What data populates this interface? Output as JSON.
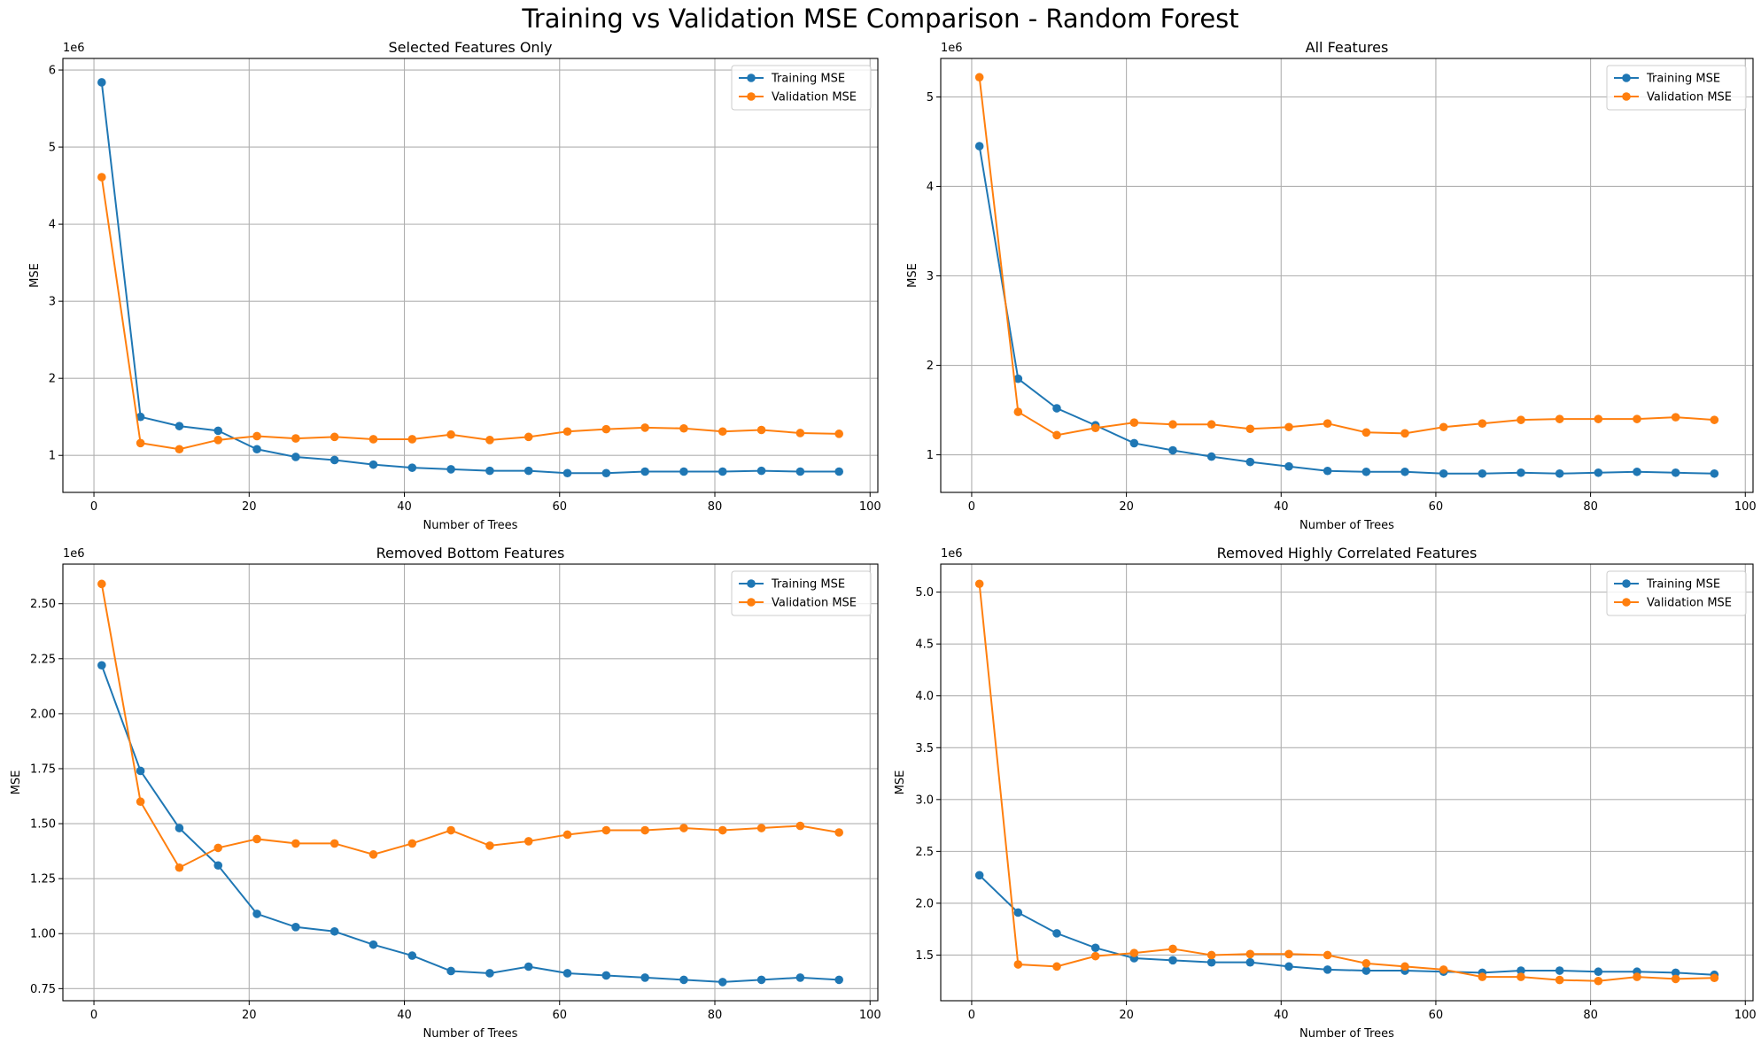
{
  "figure": {
    "title": "Training vs Validation MSE Comparison - Random Forest"
  },
  "colors": {
    "training": "#1f77b4",
    "validation": "#ff7f0e",
    "grid": "#b0b0b0"
  },
  "chart_data": [
    {
      "type": "line",
      "title": "Selected Features Only",
      "xlabel": "Number of Trees",
      "ylabel": "MSE",
      "offset_label": "1e6",
      "grid": true,
      "legend": "top-right",
      "xlim": [
        -4,
        101
      ],
      "ylim": [
        0.52,
        6.15
      ],
      "xticks": [
        0,
        20,
        40,
        60,
        80,
        100
      ],
      "xticklabels": [
        "0",
        "20",
        "40",
        "60",
        "80",
        "100"
      ],
      "yticks": [
        1,
        2,
        3,
        4,
        5,
        6
      ],
      "yticklabels": [
        "1",
        "2",
        "3",
        "4",
        "5",
        "6"
      ],
      "x": [
        1,
        6,
        11,
        16,
        21,
        26,
        31,
        36,
        41,
        46,
        51,
        56,
        61,
        66,
        71,
        76,
        81,
        86,
        91,
        96
      ],
      "series": [
        {
          "name": "Training MSE",
          "color": "#1f77b4",
          "values": [
            5.84,
            1.5,
            1.38,
            1.32,
            1.08,
            0.98,
            0.94,
            0.88,
            0.84,
            0.82,
            0.8,
            0.8,
            0.77,
            0.77,
            0.79,
            0.79,
            0.79,
            0.8,
            0.79,
            0.79
          ]
        },
        {
          "name": "Validation MSE",
          "color": "#ff7f0e",
          "values": [
            4.61,
            1.16,
            1.08,
            1.2,
            1.25,
            1.22,
            1.24,
            1.21,
            1.21,
            1.27,
            1.2,
            1.24,
            1.31,
            1.34,
            1.36,
            1.35,
            1.31,
            1.33,
            1.29,
            1.28
          ]
        }
      ]
    },
    {
      "type": "line",
      "title": "All Features",
      "xlabel": "Number of Trees",
      "ylabel": "MSE",
      "offset_label": "1e6",
      "grid": true,
      "legend": "top-right",
      "xlim": [
        -4,
        101
      ],
      "ylim": [
        0.58,
        5.43
      ],
      "xticks": [
        0,
        20,
        40,
        60,
        80,
        100
      ],
      "xticklabels": [
        "0",
        "20",
        "40",
        "60",
        "80",
        "100"
      ],
      "yticks": [
        1,
        2,
        3,
        4,
        5
      ],
      "yticklabels": [
        "1",
        "2",
        "3",
        "4",
        "5"
      ],
      "x": [
        1,
        6,
        11,
        16,
        21,
        26,
        31,
        36,
        41,
        46,
        51,
        56,
        61,
        66,
        71,
        76,
        81,
        86,
        91,
        96
      ],
      "series": [
        {
          "name": "Training MSE",
          "color": "#1f77b4",
          "values": [
            4.45,
            1.85,
            1.52,
            1.33,
            1.13,
            1.05,
            0.98,
            0.92,
            0.87,
            0.82,
            0.81,
            0.81,
            0.79,
            0.79,
            0.8,
            0.79,
            0.8,
            0.81,
            0.8,
            0.79
          ]
        },
        {
          "name": "Validation MSE",
          "color": "#ff7f0e",
          "values": [
            5.22,
            1.48,
            1.22,
            1.3,
            1.36,
            1.34,
            1.34,
            1.29,
            1.31,
            1.35,
            1.25,
            1.24,
            1.31,
            1.35,
            1.39,
            1.4,
            1.4,
            1.4,
            1.42,
            1.39
          ]
        }
      ]
    },
    {
      "type": "line",
      "title": "Removed Bottom Features",
      "xlabel": "Number of Trees",
      "ylabel": "MSE",
      "offset_label": "1e6",
      "grid": true,
      "legend": "top-right",
      "xlim": [
        -4,
        101
      ],
      "ylim": [
        0.695,
        2.68
      ],
      "xticks": [
        0,
        20,
        40,
        60,
        80,
        100
      ],
      "xticklabels": [
        "0",
        "20",
        "40",
        "60",
        "80",
        "100"
      ],
      "yticks": [
        0.75,
        1.0,
        1.25,
        1.5,
        1.75,
        2.0,
        2.25,
        2.5
      ],
      "yticklabels": [
        "0.75",
        "1.00",
        "1.25",
        "1.50",
        "1.75",
        "2.00",
        "2.25",
        "2.50"
      ],
      "x": [
        1,
        6,
        11,
        16,
        21,
        26,
        31,
        36,
        41,
        46,
        51,
        56,
        61,
        66,
        71,
        76,
        81,
        86,
        91,
        96
      ],
      "series": [
        {
          "name": "Training MSE",
          "color": "#1f77b4",
          "values": [
            2.22,
            1.74,
            1.48,
            1.31,
            1.09,
            1.03,
            1.01,
            0.95,
            0.9,
            0.83,
            0.82,
            0.85,
            0.82,
            0.81,
            0.8,
            0.79,
            0.78,
            0.79,
            0.8,
            0.79
          ]
        },
        {
          "name": "Validation MSE",
          "color": "#ff7f0e",
          "values": [
            2.59,
            1.6,
            1.3,
            1.39,
            1.43,
            1.41,
            1.41,
            1.36,
            1.41,
            1.47,
            1.4,
            1.42,
            1.45,
            1.47,
            1.47,
            1.48,
            1.47,
            1.48,
            1.49,
            1.46
          ]
        }
      ]
    },
    {
      "type": "line",
      "title": "Removed Highly Correlated Features",
      "xlabel": "Number of Trees",
      "ylabel": "MSE",
      "offset_label": "1e6",
      "grid": true,
      "legend": "top-right",
      "xlim": [
        -4,
        101
      ],
      "ylim": [
        1.06,
        5.27
      ],
      "xticks": [
        0,
        20,
        40,
        60,
        80,
        100
      ],
      "xticklabels": [
        "0",
        "20",
        "40",
        "60",
        "80",
        "100"
      ],
      "yticks": [
        1.5,
        2.0,
        2.5,
        3.0,
        3.5,
        4.0,
        4.5,
        5.0
      ],
      "yticklabels": [
        "1.5",
        "2.0",
        "2.5",
        "3.0",
        "3.5",
        "4.0",
        "4.5",
        "5.0"
      ],
      "x": [
        1,
        6,
        11,
        16,
        21,
        26,
        31,
        36,
        41,
        46,
        51,
        56,
        61,
        66,
        71,
        76,
        81,
        86,
        91,
        96
      ],
      "series": [
        {
          "name": "Training MSE",
          "color": "#1f77b4",
          "values": [
            2.27,
            1.91,
            1.71,
            1.57,
            1.47,
            1.45,
            1.43,
            1.43,
            1.39,
            1.36,
            1.35,
            1.35,
            1.34,
            1.33,
            1.35,
            1.35,
            1.34,
            1.34,
            1.33,
            1.31
          ]
        },
        {
          "name": "Validation MSE",
          "color": "#ff7f0e",
          "values": [
            5.08,
            1.41,
            1.39,
            1.49,
            1.52,
            1.56,
            1.5,
            1.51,
            1.51,
            1.5,
            1.42,
            1.39,
            1.36,
            1.29,
            1.29,
            1.26,
            1.25,
            1.29,
            1.27,
            1.28
          ]
        }
      ]
    }
  ]
}
